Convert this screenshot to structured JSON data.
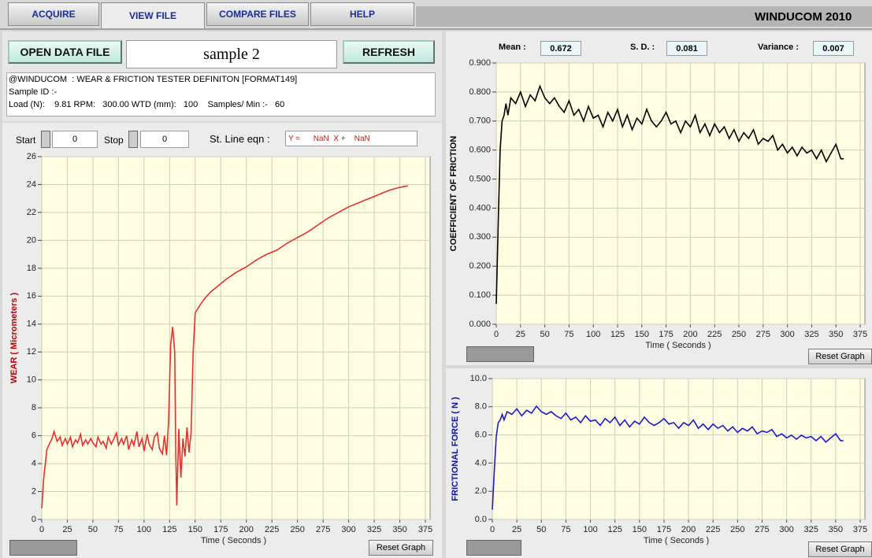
{
  "tabs": [
    "ACQUIRE",
    "VIEW FILE",
    "COMPARE FILES",
    "HELP"
  ],
  "app_title": "WINDUCOM 2010",
  "open_button": "OPEN DATA FILE",
  "file_name": "sample 2",
  "refresh_button": "REFRESH",
  "info_lines": [
    "@WINDUCOM  : WEAR & FRICTION TESTER DEFINITON [FORMAT149]",
    "Sample ID :-",
    "Load (N):    9.81 RPM:   300.00 WTD (mm):   100    Samples/ Min :-   60"
  ],
  "start": {
    "label": "Start",
    "value": "0"
  },
  "stop": {
    "label": "Stop",
    "value": "0"
  },
  "line_eqn": {
    "label": "St. Line eqn :",
    "value": "Y =      NaN  X +    NaN"
  },
  "stats": [
    {
      "label": "Mean :",
      "value": "0.672"
    },
    {
      "label": "S. D. :",
      "value": "0.081"
    },
    {
      "label": "Variance :",
      "value": "0.007"
    }
  ],
  "reset_button": "Reset Graph",
  "chart_data": [
    {
      "type": "line",
      "ylabel": "WEAR ( Micrometers )",
      "xlabel": "Time ( Seconds )",
      "color": "#e83030",
      "grid": true,
      "xlim": [
        0,
        375
      ],
      "xticks": [
        0,
        25,
        50,
        75,
        100,
        125,
        150,
        175,
        200,
        225,
        250,
        275,
        300,
        325,
        350,
        375
      ],
      "ylim": [
        0,
        26
      ],
      "yticks": [
        0,
        2,
        4,
        6,
        8,
        10,
        12,
        14,
        16,
        18,
        20,
        22,
        24,
        26
      ],
      "x": [
        0,
        2,
        5,
        8,
        10,
        12,
        15,
        18,
        20,
        23,
        25,
        28,
        30,
        33,
        35,
        38,
        40,
        43,
        45,
        48,
        50,
        53,
        55,
        58,
        60,
        63,
        65,
        68,
        70,
        73,
        75,
        78,
        80,
        83,
        85,
        88,
        90,
        93,
        95,
        98,
        100,
        103,
        105,
        108,
        110,
        113,
        115,
        118,
        120,
        122,
        124,
        126,
        128,
        130,
        131,
        132,
        134,
        136,
        138,
        140,
        142,
        144,
        146,
        148,
        150,
        155,
        160,
        165,
        170,
        175,
        180,
        190,
        200,
        210,
        220,
        230,
        240,
        250,
        260,
        270,
        280,
        290,
        300,
        310,
        320,
        330,
        340,
        350,
        358
      ],
      "values": [
        0.8,
        3.0,
        5.0,
        5.5,
        5.8,
        6.3,
        5.6,
        5.9,
        5.3,
        5.8,
        5.4,
        5.9,
        5.2,
        5.7,
        5.5,
        6.1,
        5.3,
        5.7,
        5.4,
        5.8,
        5.5,
        5.2,
        5.9,
        5.4,
        5.6,
        5.1,
        5.9,
        5.4,
        5.7,
        6.2,
        5.3,
        5.8,
        5.4,
        6.0,
        5.0,
        5.7,
        5.3,
        6.3,
        5.2,
        5.8,
        4.9,
        6.1,
        5.4,
        5.0,
        5.9,
        6.2,
        5.1,
        4.7,
        6.0,
        4.6,
        7.0,
        12.5,
        13.8,
        12.0,
        5.0,
        1.0,
        6.5,
        3.0,
        5.8,
        4.5,
        6.6,
        4.8,
        6.2,
        12.0,
        14.8,
        15.4,
        15.9,
        16.3,
        16.6,
        16.9,
        17.2,
        17.7,
        18.1,
        18.6,
        19.0,
        19.3,
        19.8,
        20.2,
        20.6,
        21.1,
        21.6,
        22.0,
        22.4,
        22.7,
        23.0,
        23.3,
        23.6,
        23.8,
        23.9
      ]
    },
    {
      "type": "line",
      "ylabel": "COEFFICIENT OF FRICTION",
      "xlabel": "Time ( Seconds )",
      "color": "#000000",
      "grid": true,
      "xlim": [
        0,
        375
      ],
      "xticks": [
        0,
        25,
        50,
        75,
        100,
        125,
        150,
        175,
        200,
        225,
        250,
        275,
        300,
        325,
        350,
        375
      ],
      "ylim": [
        0,
        0.9
      ],
      "yticks": [
        {
          "value": 0,
          "label": "0.000"
        },
        {
          "value": 0.1,
          "label": "0.100"
        },
        {
          "value": 0.2,
          "label": "0.200"
        },
        {
          "value": 0.3,
          "label": "0.300"
        },
        {
          "value": 0.4,
          "label": "0.400"
        },
        {
          "value": 0.5,
          "label": "0.500"
        },
        {
          "value": 0.6,
          "label": "0.600"
        },
        {
          "value": 0.7,
          "label": "0.700"
        },
        {
          "value": 0.8,
          "label": "0.800"
        },
        {
          "value": 0.9,
          "label": "0.900"
        }
      ],
      "x": [
        0,
        2,
        4,
        6,
        8,
        10,
        12,
        15,
        20,
        25,
        30,
        35,
        40,
        45,
        50,
        55,
        60,
        65,
        70,
        75,
        80,
        85,
        90,
        95,
        100,
        105,
        110,
        115,
        120,
        125,
        130,
        135,
        140,
        145,
        150,
        155,
        160,
        165,
        170,
        175,
        180,
        185,
        190,
        195,
        200,
        205,
        210,
        215,
        220,
        225,
        230,
        235,
        240,
        245,
        250,
        255,
        260,
        265,
        270,
        275,
        280,
        285,
        290,
        295,
        300,
        305,
        310,
        315,
        320,
        325,
        330,
        335,
        340,
        345,
        350,
        355,
        358
      ],
      "values": [
        0.07,
        0.35,
        0.6,
        0.7,
        0.72,
        0.76,
        0.72,
        0.78,
        0.76,
        0.8,
        0.75,
        0.79,
        0.77,
        0.82,
        0.78,
        0.76,
        0.78,
        0.75,
        0.73,
        0.77,
        0.72,
        0.74,
        0.7,
        0.75,
        0.71,
        0.72,
        0.68,
        0.73,
        0.7,
        0.74,
        0.68,
        0.72,
        0.67,
        0.71,
        0.69,
        0.74,
        0.7,
        0.68,
        0.7,
        0.73,
        0.69,
        0.7,
        0.66,
        0.7,
        0.68,
        0.72,
        0.66,
        0.69,
        0.65,
        0.69,
        0.66,
        0.68,
        0.64,
        0.67,
        0.63,
        0.66,
        0.64,
        0.67,
        0.62,
        0.64,
        0.63,
        0.65,
        0.6,
        0.62,
        0.59,
        0.61,
        0.58,
        0.61,
        0.59,
        0.6,
        0.57,
        0.6,
        0.56,
        0.59,
        0.62,
        0.57,
        0.57
      ]
    },
    {
      "type": "line",
      "ylabel": "FRICTIONAL FORCE ( N )",
      "xlabel": "Time ( Seconds )",
      "color": "#1a1ad0",
      "grid": true,
      "xlim": [
        0,
        375
      ],
      "xticks": [
        0,
        25,
        50,
        75,
        100,
        125,
        150,
        175,
        200,
        225,
        250,
        275,
        300,
        325,
        350,
        375
      ],
      "ylim": [
        0,
        10
      ],
      "yticks": [
        {
          "value": 0,
          "label": "0.0"
        },
        {
          "value": 2,
          "label": "2.0"
        },
        {
          "value": 4,
          "label": "4.0"
        },
        {
          "value": 6,
          "label": "6.0"
        },
        {
          "value": 8,
          "label": "8.0"
        },
        {
          "value": 10,
          "label": "10.0"
        }
      ],
      "x": [
        0,
        2,
        4,
        6,
        8,
        10,
        12,
        15,
        20,
        25,
        30,
        35,
        40,
        45,
        50,
        55,
        60,
        65,
        70,
        75,
        80,
        85,
        90,
        95,
        100,
        105,
        110,
        115,
        120,
        125,
        130,
        135,
        140,
        145,
        150,
        155,
        160,
        165,
        170,
        175,
        180,
        185,
        190,
        195,
        200,
        205,
        210,
        215,
        220,
        225,
        230,
        235,
        240,
        245,
        250,
        255,
        260,
        265,
        270,
        275,
        280,
        285,
        290,
        295,
        300,
        305,
        310,
        315,
        320,
        325,
        330,
        335,
        340,
        345,
        350,
        355,
        358
      ],
      "values": [
        0.69,
        3.43,
        5.89,
        6.87,
        7.06,
        7.46,
        7.06,
        7.65,
        7.46,
        7.85,
        7.36,
        7.75,
        7.55,
        8.04,
        7.65,
        7.46,
        7.65,
        7.36,
        7.16,
        7.55,
        7.06,
        7.26,
        6.87,
        7.36,
        6.97,
        7.06,
        6.67,
        7.16,
        6.87,
        7.26,
        6.67,
        7.06,
        6.57,
        6.97,
        6.77,
        7.26,
        6.87,
        6.67,
        6.87,
        7.16,
        6.77,
        6.87,
        6.47,
        6.87,
        6.67,
        7.06,
        6.47,
        6.77,
        6.38,
        6.77,
        6.47,
        6.67,
        6.28,
        6.57,
        6.18,
        6.47,
        6.28,
        6.57,
        6.08,
        6.28,
        6.18,
        6.38,
        5.89,
        6.08,
        5.79,
        5.98,
        5.69,
        5.98,
        5.79,
        5.89,
        5.59,
        5.89,
        5.49,
        5.79,
        6.08,
        5.59,
        5.59
      ]
    }
  ]
}
